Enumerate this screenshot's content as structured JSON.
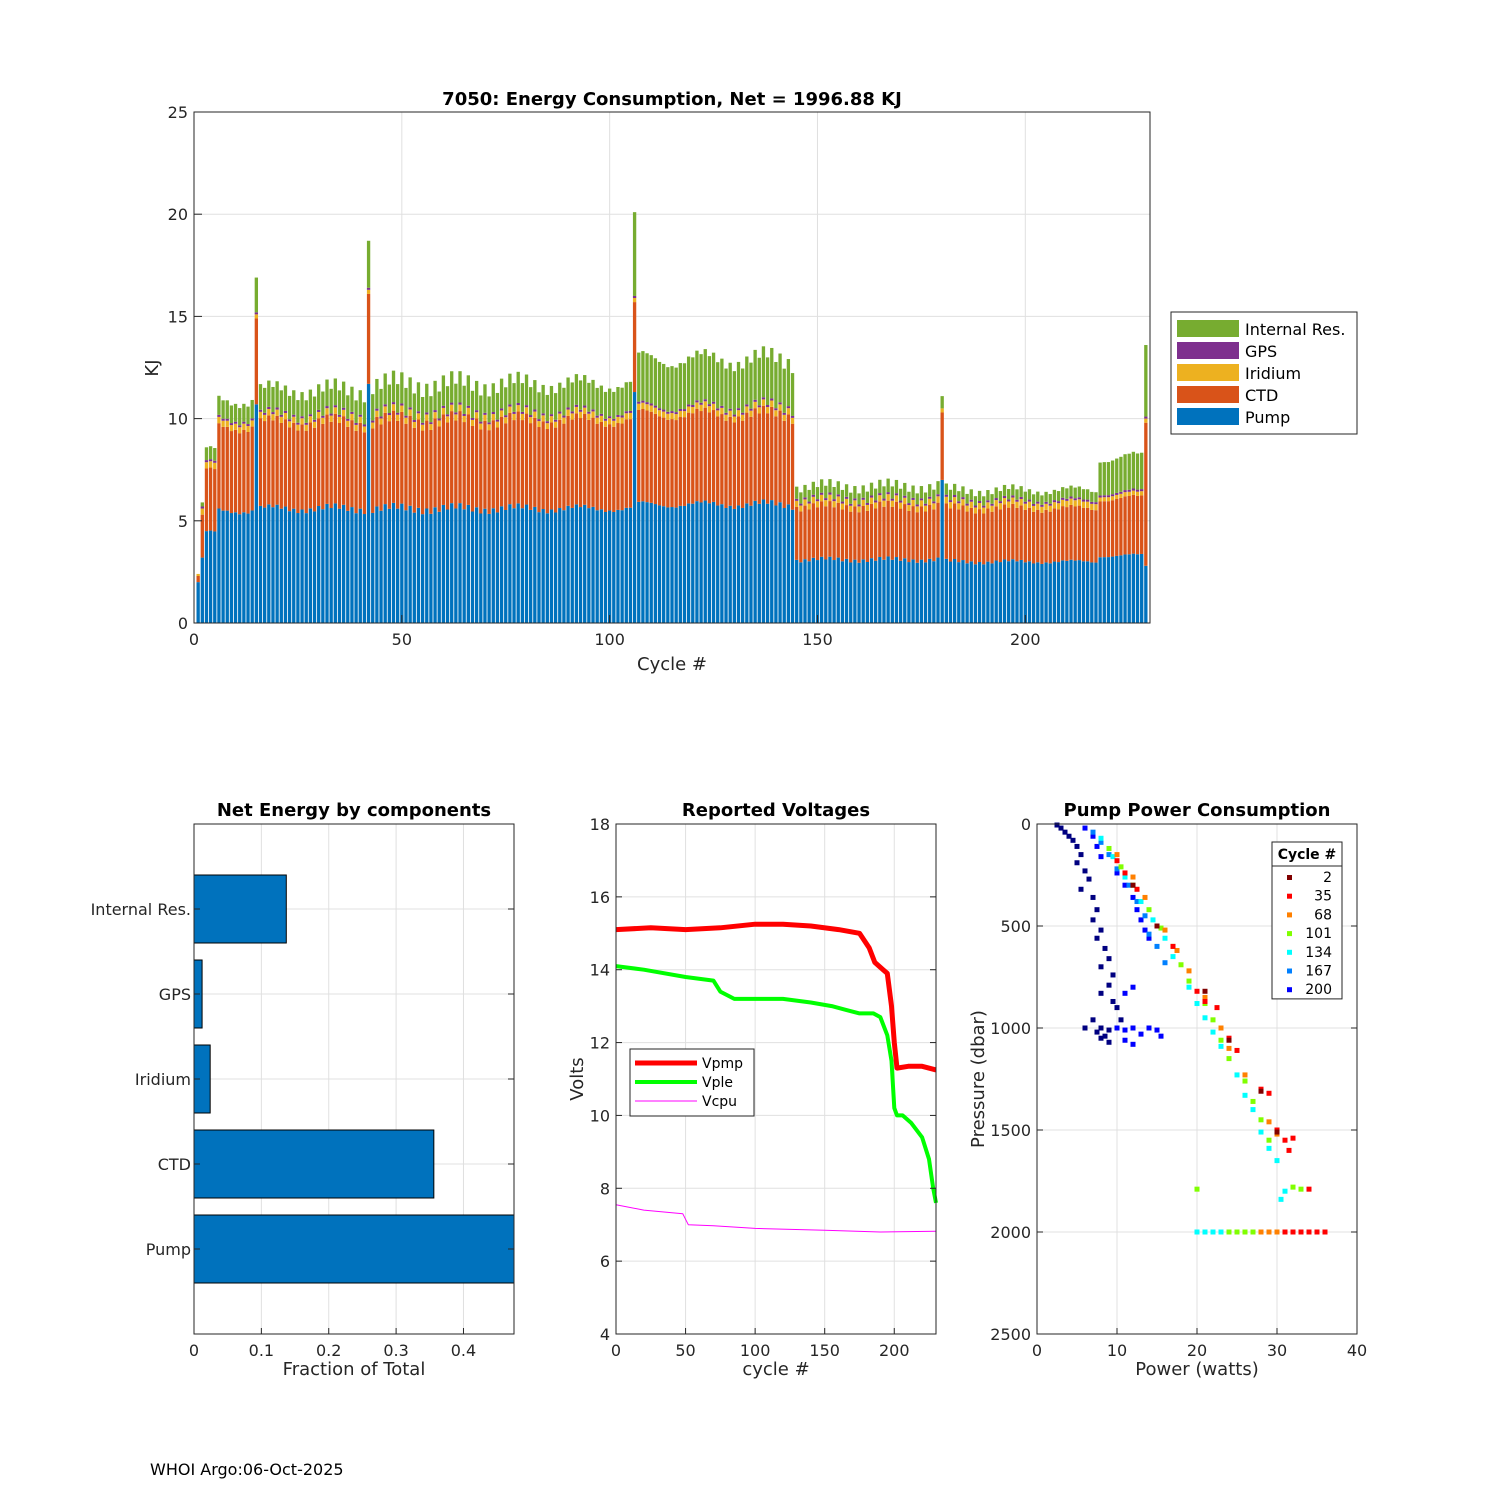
{
  "footer": "WHOI Argo:06-Oct-2025",
  "colors": {
    "pump": "#0072BD",
    "ctd": "#D95319",
    "iridium": "#EDB120",
    "gps": "#7E2F8E",
    "internal": "#77AC30"
  },
  "chart_data": [
    {
      "id": "energy",
      "type": "bar",
      "stacked": true,
      "title": "7050: Energy Consumption,  Net = 1996.88 KJ",
      "xlabel": "Cycle #",
      "ylabel": "KJ",
      "xlim": [
        0,
        230
      ],
      "ylim": [
        0,
        25
      ],
      "xticks": [
        0,
        50,
        100,
        150,
        200
      ],
      "yticks": [
        0,
        5,
        10,
        15,
        20,
        25
      ],
      "legend_position": "outside-right",
      "legend": [
        "Internal Res.",
        "GPS",
        "Iridium",
        "CTD",
        "Pump"
      ],
      "series_order": [
        "Pump",
        "CTD",
        "Iridium",
        "GPS",
        "Internal Res."
      ],
      "segments": [
        {
          "start": 1,
          "end": 1,
          "pump": 2.0,
          "ctd": 0.3,
          "iridium": 0.1,
          "gps": 0.0,
          "internal": 0.0
        },
        {
          "start": 2,
          "end": 2,
          "pump": 3.2,
          "ctd": 2.1,
          "iridium": 0.3,
          "gps": 0.1,
          "internal": 0.2
        },
        {
          "start": 3,
          "end": 5,
          "pump": 4.4,
          "ctd": 3.0,
          "iridium": 0.3,
          "gps": 0.1,
          "internal": 0.6
        },
        {
          "start": 6,
          "end": 14,
          "pump": 5.5,
          "ctd": 4.1,
          "iridium": 0.3,
          "gps": 0.1,
          "internal": 0.9
        },
        {
          "start": 15,
          "end": 15,
          "pump": 10.7,
          "ctd": 4.2,
          "iridium": 0.2,
          "gps": 0.1,
          "internal": 1.7
        },
        {
          "start": 16,
          "end": 41,
          "pump": 5.6,
          "ctd": 4.2,
          "iridium": 0.3,
          "gps": 0.1,
          "internal": 1.2
        },
        {
          "start": 42,
          "end": 42,
          "pump": 11.7,
          "ctd": 4.4,
          "iridium": 0.2,
          "gps": 0.1,
          "internal": 2.3
        },
        {
          "start": 43,
          "end": 105,
          "pump": 5.6,
          "ctd": 4.3,
          "iridium": 0.3,
          "gps": 0.1,
          "internal": 1.4
        },
        {
          "start": 106,
          "end": 106,
          "pump": 11.3,
          "ctd": 4.4,
          "iridium": 0.2,
          "gps": 0.1,
          "internal": 4.1
        },
        {
          "start": 107,
          "end": 144,
          "pump": 5.8,
          "ctd": 4.4,
          "iridium": 0.3,
          "gps": 0.1,
          "internal": 2.3
        },
        {
          "start": 145,
          "end": 179,
          "pump": 3.1,
          "ctd": 2.6,
          "iridium": 0.3,
          "gps": 0.1,
          "internal": 0.6
        },
        {
          "start": 180,
          "end": 180,
          "pump": 7.0,
          "ctd": 3.3,
          "iridium": 0.2,
          "gps": 0.0,
          "internal": 0.6
        },
        {
          "start": 181,
          "end": 217,
          "pump": 3.0,
          "ctd": 2.6,
          "iridium": 0.3,
          "gps": 0.1,
          "internal": 0.5
        },
        {
          "start": 218,
          "end": 228,
          "pump": 3.3,
          "ctd": 2.8,
          "iridium": 0.2,
          "gps": 0.1,
          "internal": 1.7
        },
        {
          "start": 229,
          "end": 229,
          "pump": 2.8,
          "ctd": 7.0,
          "iridium": 0.2,
          "gps": 0.1,
          "internal": 3.5
        }
      ]
    },
    {
      "id": "components",
      "type": "bar",
      "orientation": "horizontal",
      "title": "Net Energy by components",
      "xlabel": "Fraction of Total",
      "categories": [
        "Internal Res.",
        "GPS",
        "Iridium",
        "CTD",
        "Pump"
      ],
      "values": [
        0.137,
        0.012,
        0.024,
        0.356,
        0.48
      ],
      "xlim": [
        0,
        0.475
      ],
      "xticks": [
        0,
        0.1,
        0.2,
        0.3,
        0.4
      ],
      "xtick_labels": [
        "0",
        "0.1",
        "0.2",
        "0.3",
        "0.4"
      ]
    },
    {
      "id": "voltages",
      "type": "line",
      "title": "Reported Voltages",
      "xlabel": "cycle #",
      "ylabel": "Volts",
      "xlim": [
        0,
        230
      ],
      "ylim": [
        4,
        18
      ],
      "xticks": [
        0,
        50,
        100,
        150,
        200
      ],
      "yticks": [
        4,
        6,
        8,
        10,
        12,
        14,
        16,
        18
      ],
      "legend_position": "middle-left",
      "series": [
        {
          "name": "Vpmp",
          "color": "#FF0000",
          "width": 5,
          "x": [
            0,
            25,
            50,
            75,
            100,
            120,
            140,
            160,
            175,
            182,
            186,
            192,
            195,
            198,
            200,
            202,
            210,
            220,
            230
          ],
          "y": [
            15.1,
            15.15,
            15.1,
            15.15,
            15.25,
            15.25,
            15.2,
            15.1,
            15.0,
            14.6,
            14.2,
            14.0,
            13.9,
            13.0,
            12.0,
            11.3,
            11.35,
            11.35,
            11.25
          ]
        },
        {
          "name": "Vple",
          "color": "#00FF00",
          "width": 4,
          "x": [
            0,
            20,
            50,
            70,
            75,
            85,
            100,
            120,
            140,
            155,
            165,
            175,
            185,
            190,
            195,
            198,
            200,
            202,
            206,
            212,
            220,
            225,
            228,
            230
          ],
          "y": [
            14.1,
            14.0,
            13.8,
            13.7,
            13.4,
            13.2,
            13.2,
            13.2,
            13.1,
            13.0,
            12.9,
            12.8,
            12.8,
            12.7,
            12.2,
            11.5,
            10.2,
            10.0,
            10.0,
            9.8,
            9.4,
            8.8,
            8.0,
            7.6
          ]
        },
        {
          "name": "Vcpu",
          "color": "#FF00FF",
          "width": 1,
          "x": [
            0,
            20,
            48,
            52,
            70,
            100,
            150,
            190,
            230
          ],
          "y": [
            7.55,
            7.4,
            7.3,
            7.0,
            6.97,
            6.9,
            6.85,
            6.8,
            6.82
          ]
        }
      ]
    },
    {
      "id": "pump_power",
      "type": "scatter",
      "title": "Pump Power Consumption",
      "xlabel": "Power (watts)",
      "ylabel": "Pressure (dbar)",
      "xlim": [
        0,
        40
      ],
      "ylim": [
        2500,
        0
      ],
      "y_reversed": true,
      "xticks": [
        0,
        10,
        20,
        30,
        40
      ],
      "yticks": [
        0,
        500,
        1000,
        1500,
        2000,
        2500
      ],
      "legend_title": "Cycle #",
      "legend_position": "top-right",
      "cycle_legend": [
        {
          "label": "2",
          "color": "#800000"
        },
        {
          "label": "35",
          "color": "#FF0000"
        },
        {
          "label": "68",
          "color": "#FF8000"
        },
        {
          "label": "101",
          "color": "#80FF00"
        },
        {
          "label": "134",
          "color": "#00FFFF"
        },
        {
          "label": "167",
          "color": "#0080FF"
        },
        {
          "label": "200",
          "color": "#0000FF"
        }
      ],
      "groups": [
        {
          "color": "#000080",
          "points": [
            [
              2.5,
              5
            ],
            [
              3,
              20
            ],
            [
              3.5,
              40
            ],
            [
              4,
              60
            ],
            [
              4.5,
              80
            ],
            [
              5,
              110
            ],
            [
              5.5,
              150
            ],
            [
              5,
              190
            ],
            [
              6,
              230
            ],
            [
              6.5,
              270
            ],
            [
              5.5,
              320
            ],
            [
              7,
              360
            ],
            [
              7.5,
              420
            ],
            [
              7,
              470
            ],
            [
              8,
              520
            ],
            [
              7.5,
              560
            ],
            [
              8.5,
              610
            ],
            [
              9,
              660
            ],
            [
              8,
              700
            ],
            [
              9.5,
              740
            ],
            [
              9,
              790
            ],
            [
              8,
              830
            ],
            [
              9.5,
              870
            ],
            [
              10,
              900
            ],
            [
              7,
              960
            ],
            [
              8,
              1000
            ],
            [
              8.5,
              1040
            ],
            [
              9,
              1070
            ],
            [
              7.5,
              1020
            ],
            [
              10.5,
              960
            ],
            [
              9,
              1010
            ],
            [
              6,
              1000
            ],
            [
              8,
              1050
            ]
          ]
        },
        {
          "color": "#0000FF",
          "points": [
            [
              6,
              20
            ],
            [
              7,
              60
            ],
            [
              7.5,
              110
            ],
            [
              8,
              160
            ],
            [
              10,
              240
            ],
            [
              11,
              300
            ],
            [
              12,
              360
            ],
            [
              12.5,
              420
            ],
            [
              13,
              470
            ],
            [
              13.5,
              520
            ],
            [
              14,
              560
            ],
            [
              12,
              800
            ],
            [
              11,
              830
            ],
            [
              10,
              1000
            ],
            [
              11,
              1010
            ],
            [
              12,
              1000
            ],
            [
              13,
              1030
            ],
            [
              14,
              1000
            ],
            [
              15,
              1010
            ],
            [
              15.5,
              1040
            ],
            [
              11,
              1060
            ],
            [
              12,
              1080
            ]
          ]
        },
        {
          "color": "#0080FF",
          "points": [
            [
              7,
              40
            ],
            [
              8,
              90
            ],
            [
              9,
              150
            ],
            [
              10,
              220
            ],
            [
              11.5,
              300
            ],
            [
              12.5,
              380
            ],
            [
              13.5,
              450
            ],
            [
              14,
              540
            ],
            [
              15,
              600
            ],
            [
              16,
              680
            ]
          ]
        },
        {
          "color": "#00FFFF",
          "points": [
            [
              8,
              70
            ],
            [
              9.5,
              160
            ],
            [
              11,
              260
            ],
            [
              13,
              380
            ],
            [
              14.5,
              470
            ],
            [
              16,
              560
            ],
            [
              17,
              650
            ],
            [
              19,
              800
            ],
            [
              20,
              880
            ],
            [
              21,
              950
            ],
            [
              22,
              1020
            ],
            [
              23,
              1090
            ],
            [
              25,
              1230
            ],
            [
              26,
              1330
            ],
            [
              27,
              1400
            ],
            [
              28,
              1510
            ],
            [
              29,
              1590
            ],
            [
              30,
              1650
            ],
            [
              31,
              1800
            ],
            [
              30.5,
              1840
            ],
            [
              20,
              2000
            ],
            [
              21,
              2000
            ],
            [
              22,
              2000
            ],
            [
              23,
              2000
            ]
          ]
        },
        {
          "color": "#80FF00",
          "points": [
            [
              9,
              120
            ],
            [
              10.5,
              210
            ],
            [
              12,
              300
            ],
            [
              14,
              420
            ],
            [
              15.5,
              510
            ],
            [
              17,
              600
            ],
            [
              18,
              690
            ],
            [
              19,
              770
            ],
            [
              21,
              880
            ],
            [
              22,
              960
            ],
            [
              23,
              1060
            ],
            [
              24,
              1150
            ],
            [
              26,
              1260
            ],
            [
              27,
              1360
            ],
            [
              28,
              1450
            ],
            [
              29,
              1550
            ],
            [
              32,
              1780
            ],
            [
              33,
              1790
            ],
            [
              20,
              1790
            ],
            [
              24,
              2000
            ],
            [
              25,
              2000
            ],
            [
              26,
              2000
            ],
            [
              27,
              2000
            ]
          ]
        },
        {
          "color": "#FF8000",
          "points": [
            [
              10,
              150
            ],
            [
              12,
              260
            ],
            [
              13.5,
              360
            ],
            [
              16,
              520
            ],
            [
              17.5,
              620
            ],
            [
              19,
              720
            ],
            [
              21,
              850
            ],
            [
              23,
              1000
            ],
            [
              24,
              1100
            ],
            [
              26,
              1230
            ],
            [
              29,
              1460
            ],
            [
              30,
              1520
            ],
            [
              28,
              2000
            ],
            [
              29,
              2000
            ],
            [
              30,
              2000
            ]
          ]
        },
        {
          "color": "#FF0000",
          "points": [
            [
              10,
              180
            ],
            [
              11,
              240
            ],
            [
              12.5,
              320
            ],
            [
              17,
              600
            ],
            [
              20,
              820
            ],
            [
              21,
              870
            ],
            [
              22.5,
              900
            ],
            [
              24,
              1050
            ],
            [
              25,
              1110
            ],
            [
              28,
              1300
            ],
            [
              29,
              1320
            ],
            [
              30,
              1500
            ],
            [
              31,
              1550
            ],
            [
              32,
              1540
            ],
            [
              31.5,
              1600
            ],
            [
              34,
              1790
            ],
            [
              31,
              2000
            ],
            [
              32,
              2000
            ],
            [
              33,
              2000
            ],
            [
              34,
              2000
            ],
            [
              35,
              2000
            ],
            [
              36,
              2000
            ]
          ]
        },
        {
          "color": "#800000",
          "points": [
            [
              12,
              300
            ],
            [
              15,
              500
            ],
            [
              21,
              820
            ],
            [
              24,
              1060
            ],
            [
              28,
              1310
            ],
            [
              30,
              1510
            ]
          ]
        }
      ]
    }
  ]
}
